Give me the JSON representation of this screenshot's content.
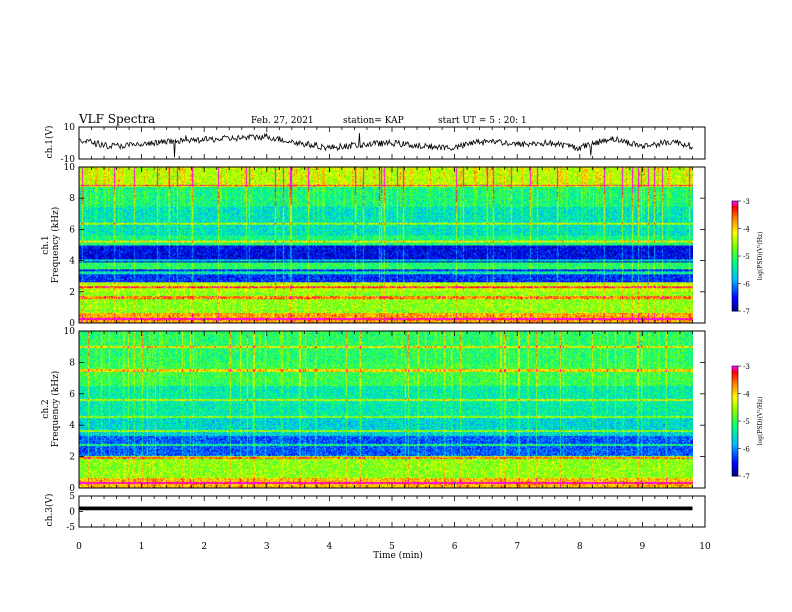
{
  "header": {
    "title": "VLF Spectra",
    "date": "Feb. 27, 2021",
    "station": "station= KAP",
    "start_time": "start UT = 5 : 20: 1"
  },
  "axis": {
    "xlabel": "Time (min)",
    "ch1_label": "ch.1(V)",
    "ch2_label": "ch.2",
    "ch3_label": "ch.3(V)",
    "freq_label": "Frequency (kHz)",
    "colorbar_label": "log(PSD)(V²/Hz)"
  },
  "colors": {
    "colormap": [
      "#00007f",
      "#0000ff",
      "#00bfff",
      "#00ff7f",
      "#7fff00",
      "#ffff00",
      "#ff7f00",
      "#ff0000",
      "#ff00ff"
    ],
    "trace": "#000000"
  },
  "chart_data": [
    {
      "type": "line",
      "name": "ch1_waveform",
      "ylabel": "ch.1(V)",
      "xlim": [
        0,
        10
      ],
      "ylim": [
        -10,
        10
      ],
      "yticks": [
        "10",
        "-10"
      ],
      "x": [
        0,
        0.5,
        1,
        1.5,
        2,
        2.5,
        3,
        3.5,
        4,
        4.5,
        5,
        5.5,
        6,
        6.5,
        7,
        7.5,
        8,
        8.5,
        9,
        9.5,
        9.8
      ],
      "y": [
        2,
        -2,
        -1,
        1,
        2,
        3,
        4,
        0,
        -3,
        -1,
        0,
        -2,
        -3,
        2,
        -1,
        0,
        -3,
        3,
        -2,
        1,
        -2
      ]
    },
    {
      "type": "heatmap",
      "name": "ch1_spectrogram",
      "ylabel": "Frequency (kHz)",
      "xlim": [
        0,
        9.8
      ],
      "ylim": [
        0,
        10
      ],
      "yticks": [
        "0",
        "2",
        "4",
        "6",
        "8",
        "10"
      ],
      "colorbar": {
        "min": -7,
        "max": -3,
        "ticks": [
          "-3",
          "-4",
          "-5",
          "-6",
          "-7"
        ],
        "label": "log(PSD)(V²/Hz)"
      },
      "bands_khz": [
        {
          "from": 0,
          "to": 0.6,
          "log_psd": -3.8
        },
        {
          "from": 0.6,
          "to": 2,
          "log_psd": -4.6
        },
        {
          "from": 2,
          "to": 2.6,
          "log_psd": -4.4
        },
        {
          "from": 2.6,
          "to": 3.4,
          "log_psd": -6.4
        },
        {
          "from": 3.4,
          "to": 3.9,
          "log_psd": -5.1
        },
        {
          "from": 3.9,
          "to": 5.0,
          "log_psd": -6.6
        },
        {
          "from": 5.0,
          "to": 5.6,
          "log_psd": -5.2
        },
        {
          "from": 5.6,
          "to": 7.5,
          "log_psd": -5.5
        },
        {
          "from": 7.5,
          "to": 8.8,
          "log_psd": -5.2
        },
        {
          "from": 8.8,
          "to": 10,
          "log_psd": -4.4
        }
      ],
      "tone_lines_khz": [
        0.25,
        1.6,
        2.3,
        3.2,
        4.0,
        5.2,
        6.4,
        8.8
      ]
    },
    {
      "type": "heatmap",
      "name": "ch2_spectrogram",
      "ylabel": "Frequency (kHz)",
      "xlim": [
        0,
        9.8
      ],
      "ylim": [
        0,
        10
      ],
      "yticks": [
        "0",
        "2",
        "4",
        "6",
        "8",
        "10"
      ],
      "colorbar": {
        "min": -7,
        "max": -3,
        "ticks": [
          "-3",
          "-4",
          "-5",
          "-6",
          "-7"
        ],
        "label": "log(PSD)(V²/Hz)"
      },
      "bands_khz": [
        {
          "from": 0,
          "to": 0.6,
          "log_psd": -3.9
        },
        {
          "from": 0.6,
          "to": 2.0,
          "log_psd": -4.6
        },
        {
          "from": 2.0,
          "to": 3.3,
          "log_psd": -6.2
        },
        {
          "from": 3.3,
          "to": 4.6,
          "log_psd": -5.6
        },
        {
          "from": 4.6,
          "to": 6.5,
          "log_psd": -5.4
        },
        {
          "from": 6.5,
          "to": 8.0,
          "log_psd": -5.0
        },
        {
          "from": 8.0,
          "to": 10,
          "log_psd": -5.1
        }
      ],
      "tone_lines_khz": [
        0.3,
        1.9,
        2.7,
        3.6,
        4.5,
        5.6,
        7.5,
        9.0
      ]
    },
    {
      "type": "line",
      "name": "ch3_waveform",
      "ylabel": "ch.3(V)",
      "xlim": [
        0,
        10
      ],
      "ylim": [
        -5,
        5
      ],
      "yticks": [
        "5",
        "0",
        "-5"
      ],
      "x": [
        0,
        9.8
      ],
      "y": [
        1,
        1
      ],
      "noise_band_v": [
        0.4,
        1.6
      ]
    }
  ],
  "xticks": [
    "0",
    "1",
    "2",
    "3",
    "4",
    "5",
    "6",
    "7",
    "8",
    "9",
    "10"
  ]
}
